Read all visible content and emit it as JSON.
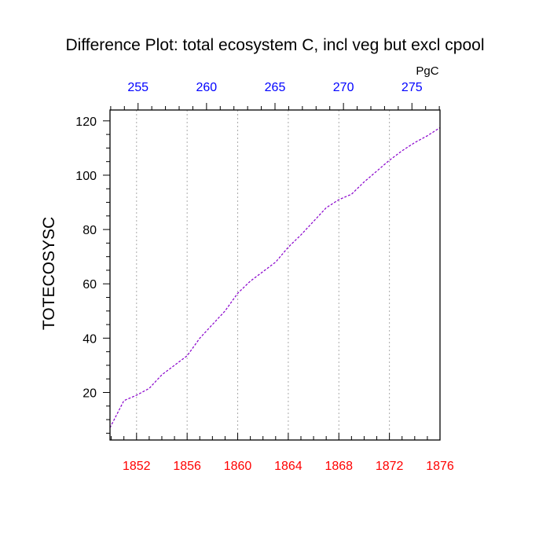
{
  "chart_data": {
    "type": "line",
    "title": "Difference Plot: total ecosystem C, incl veg but excl cpool",
    "ylabel": "TOTECOSYSC",
    "top_axis_unit": "PgC",
    "xlim": [
      1849.9,
      1876
    ],
    "ylim": [
      2.5,
      124
    ],
    "top_xlim": [
      252.95,
      277.05
    ],
    "x_ticks": [
      1852,
      1856,
      1860,
      1864,
      1868,
      1872,
      1876
    ],
    "x_tick_labels": [
      "1852",
      "1856",
      "1860",
      "1864",
      "1868",
      "1872",
      "1876"
    ],
    "y_ticks": [
      20,
      40,
      60,
      80,
      100,
      120
    ],
    "y_tick_labels": [
      "20",
      "40",
      "60",
      "80",
      "100",
      "120"
    ],
    "top_ticks": [
      255,
      260,
      265,
      270,
      275
    ],
    "top_tick_labels": [
      "255",
      "260",
      "265",
      "270",
      "275"
    ],
    "grid_x": true,
    "grid_y": false,
    "colors": {
      "line": "#8800cc",
      "bottom_ticks": "#ff0000",
      "top_ticks": "#0000ff",
      "axes": "#000000",
      "grid": "#aaaaaa"
    },
    "series": [
      {
        "x": [
          1849.9,
          1851,
          1852,
          1853,
          1854,
          1855,
          1856,
          1857,
          1858,
          1859,
          1860,
          1861,
          1862,
          1863,
          1864,
          1865,
          1866,
          1867,
          1868,
          1869,
          1870,
          1871,
          1872,
          1873,
          1874,
          1875,
          1876
        ],
        "y": [
          7,
          17,
          19,
          21.5,
          26.5,
          30,
          33.5,
          40,
          45,
          50,
          56.5,
          61,
          64.5,
          68,
          73.5,
          78,
          83,
          88,
          91,
          93,
          97.5,
          101.5,
          105.5,
          109,
          112,
          114.5,
          117.5
        ]
      }
    ]
  }
}
